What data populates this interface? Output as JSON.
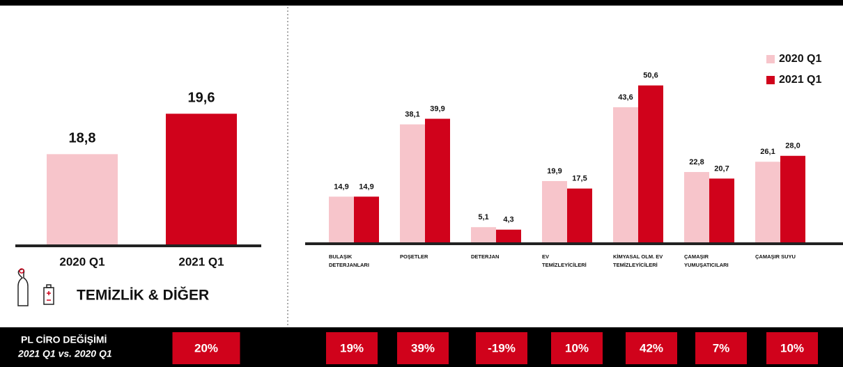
{
  "chart_data": [
    {
      "type": "bar",
      "categories": [
        "2020 Q1",
        "2021 Q1"
      ],
      "values": [
        18.8,
        19.6
      ],
      "value_labels": [
        "18,8",
        "19,6"
      ],
      "colors": [
        "#f7c5cb",
        "#d0021b"
      ],
      "ylim": [
        17,
        20.5
      ]
    },
    {
      "type": "bar",
      "categories": [
        [
          "BULAŞIK",
          "DETERJANLARI"
        ],
        [
          "POŞETLER"
        ],
        [
          "DETERJAN"
        ],
        [
          "EV",
          "TEMİZLEYİCİLERİ"
        ],
        [
          "KİMYASAL OLM. EV",
          "TEMİZLEYİCİLERİ"
        ],
        [
          "ÇAMAŞIR",
          "YUMUŞATICILARI"
        ],
        [
          "ÇAMAŞIR SUYU"
        ]
      ],
      "series": [
        {
          "name": "2020 Q1",
          "color": "#f7c5cb",
          "values": [
            14.9,
            38.1,
            5.1,
            19.9,
            43.6,
            22.8,
            26.1
          ],
          "value_labels": [
            "14,9",
            "38,1",
            "5,1",
            "19,9",
            "43,6",
            "22,8",
            "26,1"
          ]
        },
        {
          "name": "2021 Q1",
          "color": "#d0021b",
          "values": [
            14.9,
            39.9,
            4.3,
            17.5,
            50.6,
            20.7,
            28.0
          ],
          "value_labels": [
            "14,9",
            "39,9",
            "4,3",
            "17,5",
            "50,6",
            "20,7",
            "28,0"
          ]
        }
      ],
      "ylim": [
        0,
        55
      ],
      "legend": "upper right"
    }
  ],
  "section_label": "TEMİZLİK & DİĞER",
  "change": {
    "title": "PL CİRO DEĞİŞİMİ",
    "subtitle": "2021 Q1 vs. 2020 Q1",
    "labels": [
      "20%",
      "19%",
      "39%",
      "-19%",
      "10%",
      "42%",
      "7%",
      "10%"
    ]
  }
}
